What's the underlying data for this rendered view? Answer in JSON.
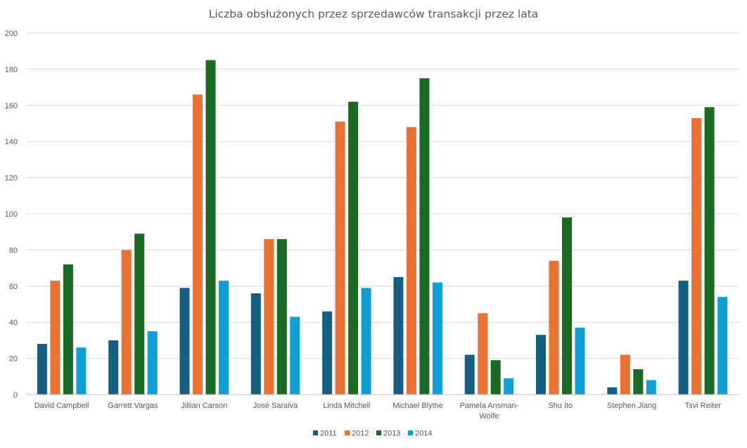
{
  "chart_data": {
    "type": "bar",
    "title": "Liczba obsłużonych przez sprzedawców transakcji przez lata",
    "xlabel": "",
    "ylabel": "",
    "ylim": [
      0,
      200
    ],
    "yticks": [
      0,
      20,
      40,
      60,
      80,
      100,
      120,
      140,
      160,
      180,
      200
    ],
    "grid": true,
    "legend": "bottom",
    "categories": [
      "David Campbell",
      "Garrett Vargas",
      "Jillian Carson",
      "José Saraiva",
      "Linda Mitchell",
      "Michael Blythe",
      "Pamela Ansman-Wolfe",
      "Shu Ito",
      "Stephen Jiang",
      "Tsvi Reiter"
    ],
    "category_label_lines": [
      [
        "David Campbell"
      ],
      [
        "Garrett Vargas"
      ],
      [
        "Jillian Carson"
      ],
      [
        "José Saraiva"
      ],
      [
        "Linda Mitchell"
      ],
      [
        "Michael Blythe"
      ],
      [
        "Pamela Ansman-",
        "Wolfe"
      ],
      [
        "Shu Ito"
      ],
      [
        "Stephen Jiang"
      ],
      [
        "Tsvi Reiter"
      ]
    ],
    "series": [
      {
        "name": "2011",
        "color": "#156082",
        "values": [
          28,
          30,
          59,
          56,
          46,
          65,
          22,
          33,
          4,
          63
        ]
      },
      {
        "name": "2012",
        "color": "#e97132",
        "values": [
          63,
          80,
          166,
          86,
          151,
          148,
          45,
          74,
          22,
          153
        ]
      },
      {
        "name": "2013",
        "color": "#196b24",
        "values": [
          72,
          89,
          185,
          86,
          162,
          175,
          19,
          98,
          14,
          159
        ]
      },
      {
        "name": "2014",
        "color": "#0f9ed5",
        "values": [
          26,
          35,
          63,
          43,
          59,
          62,
          9,
          37,
          8,
          54
        ]
      }
    ]
  }
}
